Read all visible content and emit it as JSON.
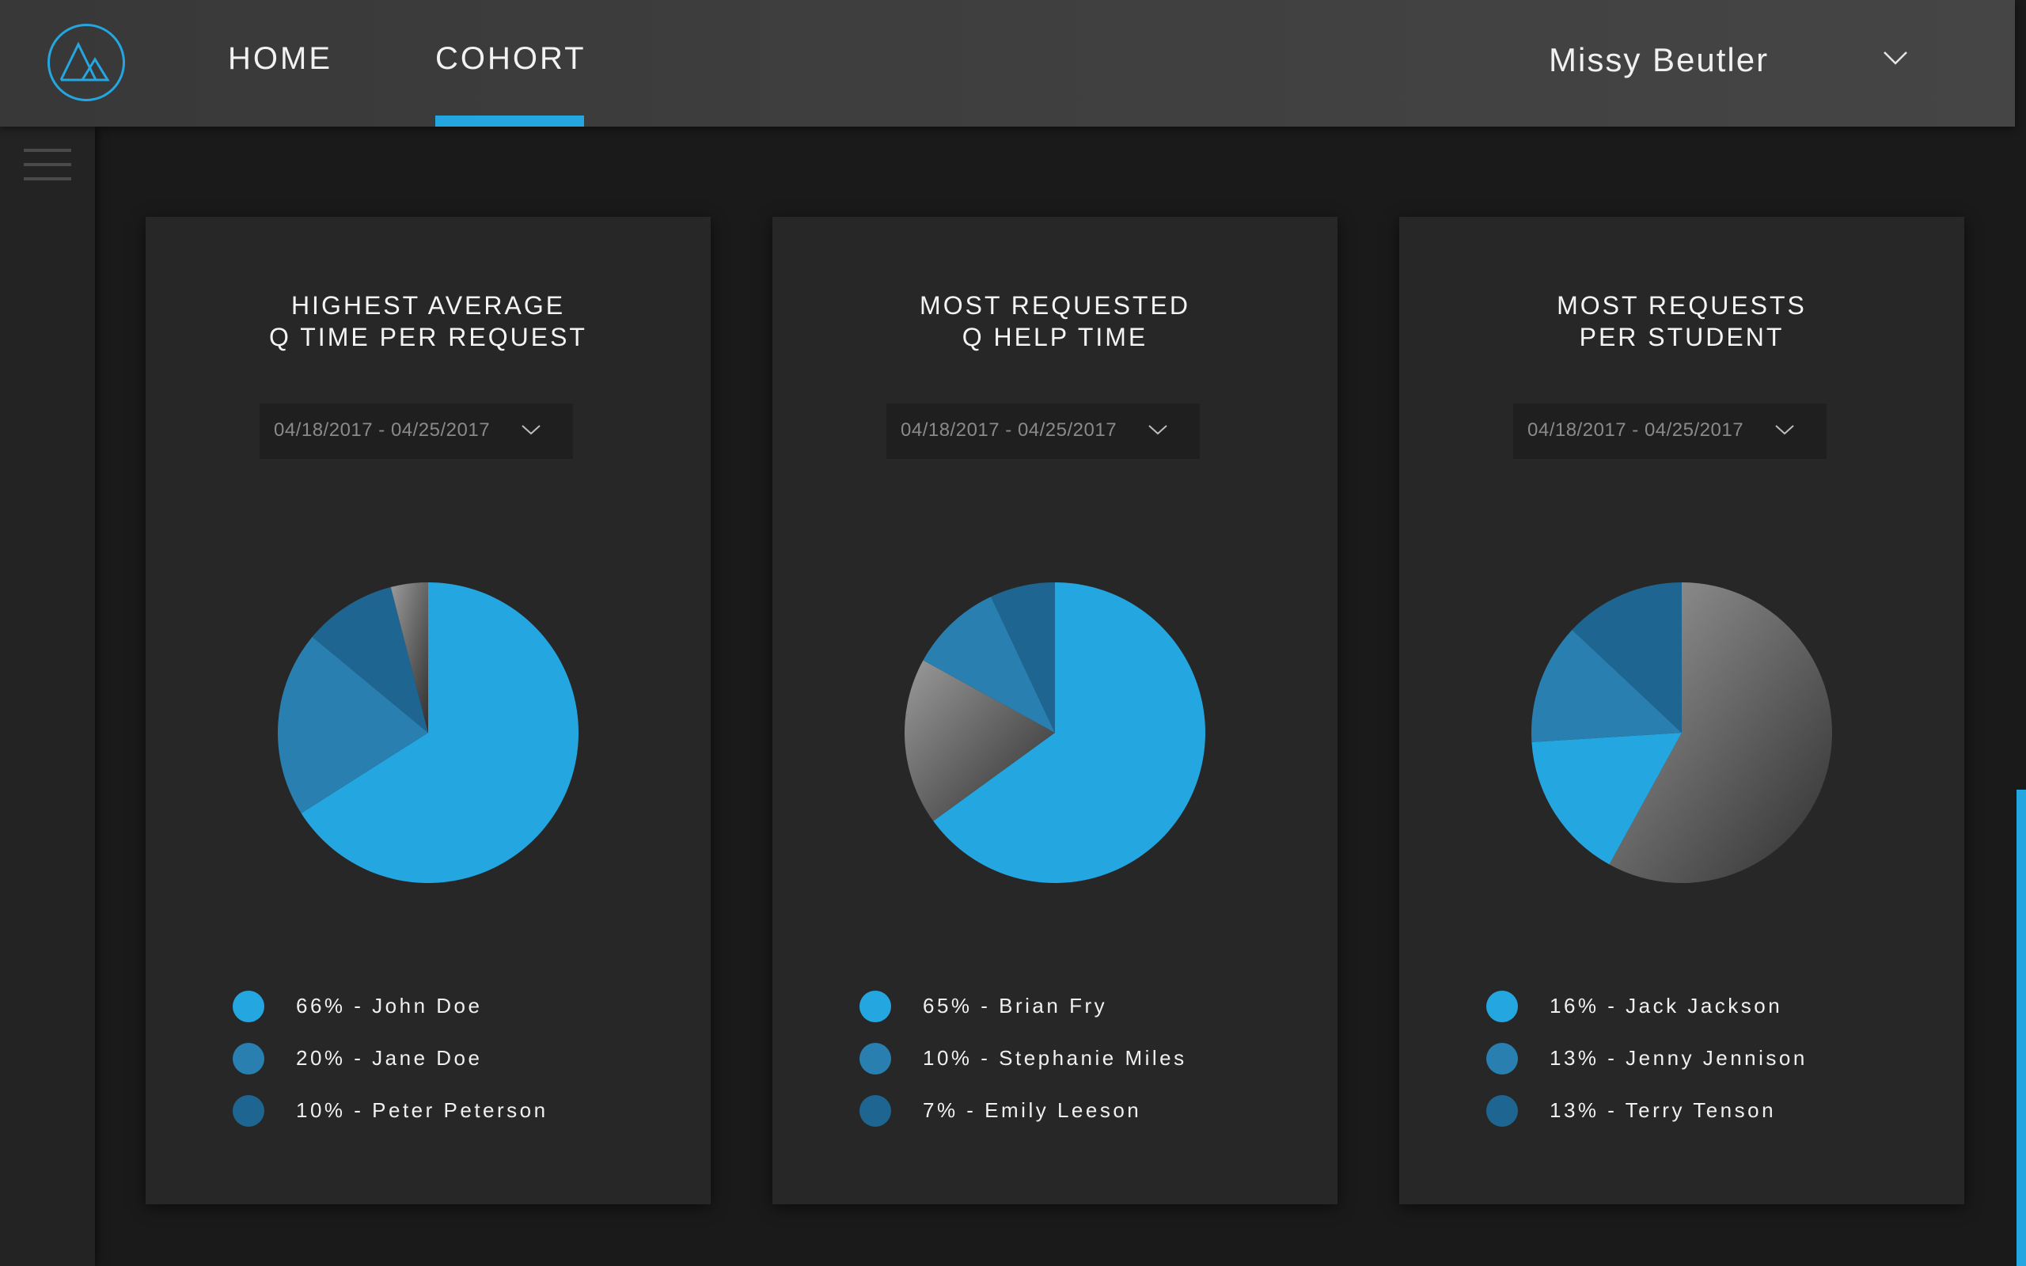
{
  "header": {
    "nav": [
      {
        "label": "HOME"
      },
      {
        "label": "COHORT"
      }
    ],
    "active_tab": "COHORT",
    "user": {
      "name": "Missy Beutler"
    },
    "accent_color": "#24a6e0"
  },
  "cards": [
    {
      "title_line1": "HIGHEST AVERAGE",
      "title_line2": "Q TIME PER REQUEST",
      "date_range": "04/18/2017 - 04/25/2017",
      "legend": [
        {
          "text": "66% - John Doe",
          "color": "#24a6e0"
        },
        {
          "text": "20% - Jane Doe",
          "color": "#2980b0"
        },
        {
          "text": "10% - Peter Peterson",
          "color": "#1e6591"
        }
      ]
    },
    {
      "title_line1": "MOST REQUESTED",
      "title_line2": "Q HELP TIME",
      "date_range": "04/18/2017 - 04/25/2017",
      "legend": [
        {
          "text": "65% - Brian Fry",
          "color": "#24a6e0"
        },
        {
          "text": "10% - Stephanie Miles",
          "color": "#2980b0"
        },
        {
          "text": "7% - Emily Leeson",
          "color": "#1e6591"
        }
      ]
    },
    {
      "title_line1": "MOST REQUESTS",
      "title_line2": "PER STUDENT",
      "date_range": "04/18/2017 - 04/25/2017",
      "legend": [
        {
          "text": "16% - Jack Jackson",
          "color": "#24a6e0"
        },
        {
          "text": "13% - Jenny Jennison",
          "color": "#2980b0"
        },
        {
          "text": "13% - Terry Tenson",
          "color": "#1e6591"
        }
      ]
    }
  ],
  "chart_data": [
    {
      "type": "pie",
      "title": "HIGHEST AVERAGE Q TIME PER REQUEST",
      "slices": [
        {
          "label": "John Doe",
          "value": 66,
          "color": "#24a6e0"
        },
        {
          "label": "Jane Doe",
          "value": 20,
          "color": "#2980b0"
        },
        {
          "label": "Peter Peterson",
          "value": 10,
          "color": "#1e6591"
        },
        {
          "label": "",
          "value": 4,
          "color": "gray"
        }
      ]
    },
    {
      "type": "pie",
      "title": "MOST REQUESTED Q HELP TIME",
      "slices": [
        {
          "label": "Brian Fry",
          "value": 65,
          "color": "#24a6e0"
        },
        {
          "label": "",
          "value": 18,
          "color": "gray"
        },
        {
          "label": "Stephanie Miles",
          "value": 10,
          "color": "#2980b0"
        },
        {
          "label": "Emily Leeson",
          "value": 7,
          "color": "#1e6591"
        }
      ]
    },
    {
      "type": "pie",
      "title": "MOST REQUESTS PER STUDENT",
      "slices": [
        {
          "label": "",
          "value": 58,
          "color": "gray"
        },
        {
          "label": "Jack Jackson",
          "value": 16,
          "color": "#24a6e0"
        },
        {
          "label": "Jenny Jennison",
          "value": 13,
          "color": "#2980b0"
        },
        {
          "label": "Terry Tenson",
          "value": 13,
          "color": "#1e6591"
        }
      ]
    }
  ]
}
